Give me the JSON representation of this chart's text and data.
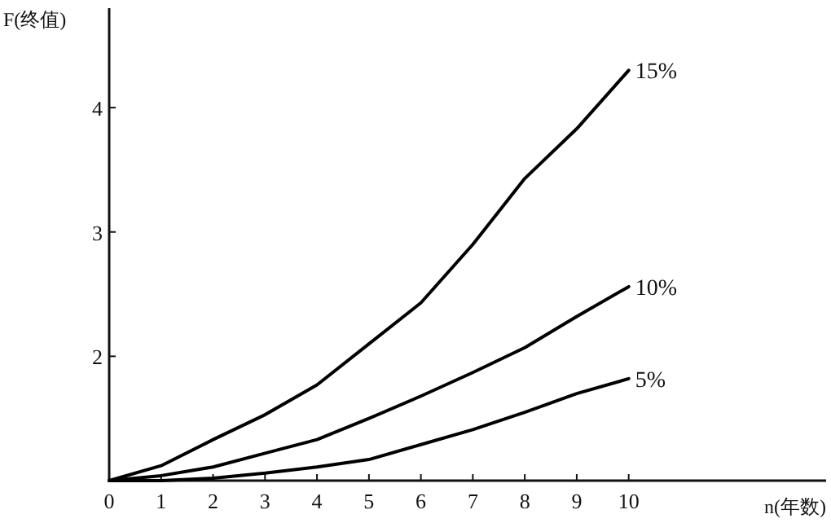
{
  "chart_data": {
    "type": "line",
    "xlabel": "n(年数)",
    "ylabel": "F(终值)",
    "x": [
      0,
      1,
      2,
      3,
      4,
      5,
      6,
      7,
      8,
      9,
      10
    ],
    "xlim": [
      0,
      13.8
    ],
    "ylim": [
      1,
      4.8
    ],
    "xticks": [
      0,
      1,
      2,
      3,
      4,
      5,
      6,
      7,
      8,
      9,
      10
    ],
    "yticks": [
      2,
      3,
      4
    ],
    "series": [
      {
        "name": "15%",
        "color": "#000000",
        "values": [
          1.0,
          1.12,
          1.33,
          1.53,
          1.77,
          2.1,
          2.43,
          2.9,
          3.43,
          3.83,
          4.3
        ]
      },
      {
        "name": "10%",
        "color": "#000000",
        "values": [
          1.0,
          1.04,
          1.11,
          1.22,
          1.33,
          1.5,
          1.68,
          1.87,
          2.07,
          2.32,
          2.56
        ]
      },
      {
        "name": "5%",
        "color": "#000000",
        "values": [
          1.0,
          1.0,
          1.02,
          1.06,
          1.11,
          1.17,
          1.29,
          1.41,
          1.55,
          1.7,
          1.82
        ]
      }
    ]
  }
}
